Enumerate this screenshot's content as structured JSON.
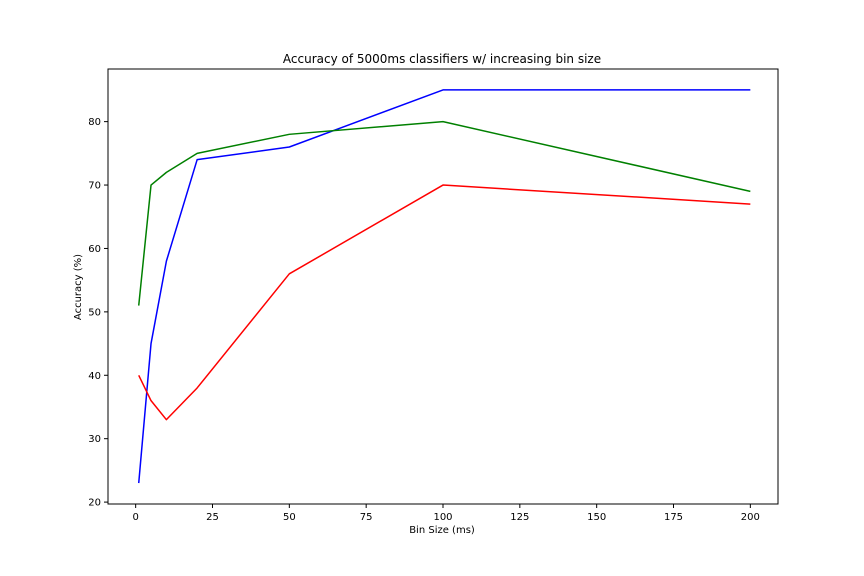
{
  "chart_data": {
    "type": "line",
    "title": "Accuracy of 5000ms classifiers w/ increasing bin size",
    "xlabel": "Bin Size (ms)",
    "ylabel": "Accuracy (%)",
    "xlim": [
      -9,
      209
    ],
    "ylim": [
      19.7,
      88.3
    ],
    "xticks": [
      0,
      25,
      50,
      75,
      100,
      125,
      150,
      175,
      200
    ],
    "yticks": [
      20,
      30,
      40,
      50,
      60,
      70,
      80
    ],
    "grid": false,
    "legend": "none",
    "series": [
      {
        "color": "#0000ff",
        "x": [
          1,
          5,
          10,
          20,
          50,
          100,
          200
        ],
        "y": [
          23,
          45,
          58,
          74,
          76,
          85,
          85
        ]
      },
      {
        "color": "#008000",
        "x": [
          1,
          5,
          10,
          20,
          50,
          100,
          200
        ],
        "y": [
          51,
          70,
          72,
          75,
          78,
          80,
          69
        ]
      },
      {
        "color": "#ff0000",
        "x": [
          1,
          5,
          10,
          20,
          50,
          100,
          200
        ],
        "y": [
          40,
          36,
          33,
          38,
          56,
          70,
          67
        ]
      }
    ]
  }
}
